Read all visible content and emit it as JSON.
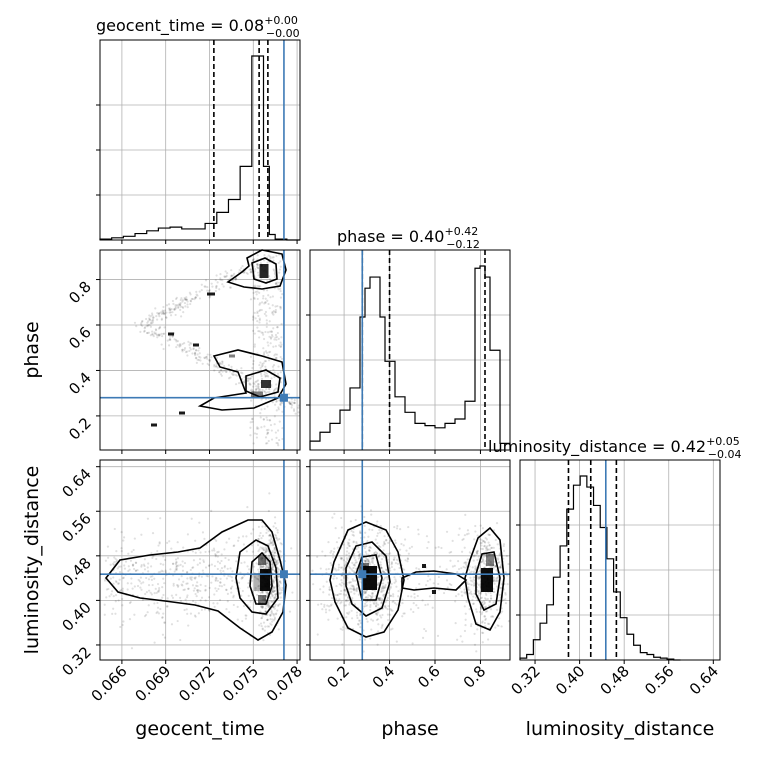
{
  "chart_data": {
    "type": "corner",
    "parameters": [
      {
        "key": "geocent_time",
        "label": "geocent_time",
        "title_prefix": "geocent_time = ",
        "median": "0.08",
        "plus": "+0.00",
        "minus": "−0.00",
        "range": [
          0.0645,
          0.0782
        ],
        "ticks": [
          0.066,
          0.069,
          0.072,
          0.075,
          0.078
        ],
        "tick_labels": [
          "0.066",
          "0.069",
          "0.072",
          "0.075",
          "0.078"
        ],
        "quantiles": [
          0.0723,
          0.0754,
          0.076
        ],
        "truth": 0.0771,
        "hist_edges": [
          0.0645,
          0.0653,
          0.0661,
          0.0669,
          0.0677,
          0.0685,
          0.0693,
          0.0701,
          0.0709,
          0.0717,
          0.0725,
          0.0733,
          0.0741,
          0.0749,
          0.0753,
          0.0757,
          0.0761,
          0.0765,
          0.0773,
          0.0782
        ],
        "hist_values": [
          0.5,
          1.2,
          2,
          3.5,
          5,
          6.5,
          7,
          6,
          6,
          9,
          15,
          22,
          40,
          100,
          100,
          40,
          3,
          0.5,
          0
        ]
      },
      {
        "key": "phase",
        "label": "phase",
        "title_prefix": "phase = ",
        "median": "0.40",
        "plus": "+0.42",
        "minus": "−0.12",
        "range": [
          0.05,
          0.93
        ],
        "ticks": [
          0.2,
          0.4,
          0.6,
          0.8
        ],
        "tick_labels": [
          "0.2",
          "0.4",
          "0.6",
          "0.8"
        ],
        "quantiles": [
          0.28,
          0.4,
          0.82
        ],
        "truth": 0.28,
        "hist_edges": [
          0.05,
          0.094,
          0.138,
          0.182,
          0.226,
          0.27,
          0.292,
          0.314,
          0.336,
          0.358,
          0.38,
          0.424,
          0.468,
          0.512,
          0.556,
          0.6,
          0.644,
          0.688,
          0.732,
          0.776,
          0.798,
          0.82,
          0.842,
          0.886,
          0.93
        ],
        "hist_values": [
          4,
          8,
          12,
          18,
          28,
          60,
          73,
          78,
          78,
          60,
          40,
          24,
          17,
          12,
          11,
          10,
          12,
          14,
          22,
          82,
          83,
          78,
          45,
          3
        ]
      },
      {
        "key": "luminosity_distance",
        "label": "luminosity_distance",
        "title_prefix": "luminosity_distance = ",
        "median": "0.42",
        "plus": "+0.05",
        "minus": "−0.04",
        "range": [
          0.293,
          0.652
        ],
        "ticks": [
          0.32,
          0.4,
          0.48,
          0.56,
          0.64
        ],
        "tick_labels": [
          "0.32",
          "0.40",
          "0.48",
          "0.56",
          "0.64"
        ],
        "quantiles": [
          0.38,
          0.42,
          0.466
        ],
        "truth": 0.447,
        "hist_edges": [
          0.293,
          0.305,
          0.317,
          0.329,
          0.341,
          0.353,
          0.365,
          0.377,
          0.389,
          0.401,
          0.413,
          0.425,
          0.437,
          0.449,
          0.461,
          0.473,
          0.485,
          0.497,
          0.509,
          0.521,
          0.533,
          0.545,
          0.557,
          0.569,
          0.581
        ],
        "hist_values": [
          1,
          3,
          11,
          20,
          30,
          45,
          62,
          82,
          95,
          100,
          94,
          84,
          72,
          55,
          37,
          23,
          14,
          8,
          4,
          3,
          1.5,
          1,
          0.5,
          0
        ]
      }
    ]
  }
}
